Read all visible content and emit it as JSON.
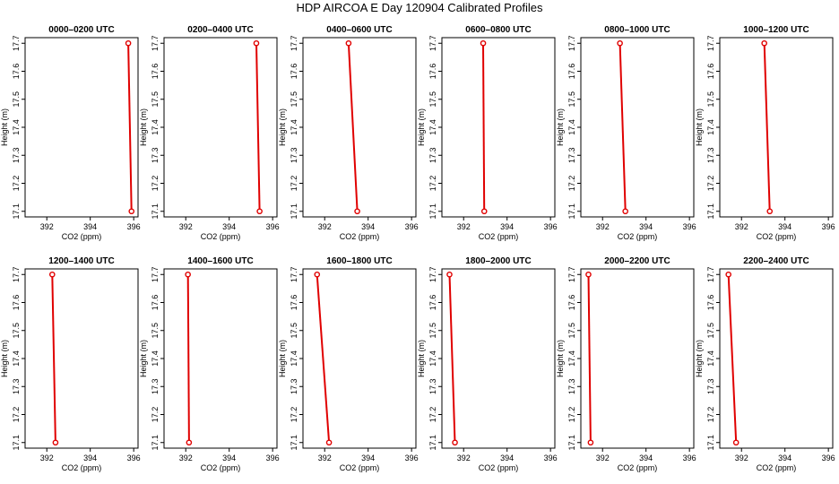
{
  "title": "HDP AIRCOA E  Day 120904  Calibrated Profiles",
  "style": {
    "line_color": "#e00000",
    "marker_color": "#e00000",
    "axis_color": "#000000"
  },
  "chart_data": [
    {
      "type": "line",
      "title": "0000–0200 UTC",
      "xlabel": "CO2 (ppm)",
      "ylabel": "Height (m)",
      "xlim": [
        391,
        396.2
      ],
      "ylim": [
        17.08,
        17.72
      ],
      "xticks": [
        "392",
        "394",
        "396"
      ],
      "yticks": [
        "17.1",
        "17.2",
        "17.3",
        "17.4",
        "17.5",
        "17.6",
        "17.7"
      ],
      "points": [
        {
          "x": 395.75,
          "y": 17.7
        },
        {
          "x": 395.9,
          "y": 17.1
        }
      ]
    },
    {
      "type": "line",
      "title": "0200–0400 UTC",
      "xlabel": "CO2 (ppm)",
      "ylabel": "Height (m)",
      "xlim": [
        391,
        396.2
      ],
      "ylim": [
        17.08,
        17.72
      ],
      "xticks": [
        "392",
        "394",
        "396"
      ],
      "yticks": [
        "17.1",
        "17.2",
        "17.3",
        "17.4",
        "17.5",
        "17.6",
        "17.7"
      ],
      "points": [
        {
          "x": 395.25,
          "y": 17.7
        },
        {
          "x": 395.4,
          "y": 17.1
        }
      ]
    },
    {
      "type": "line",
      "title": "0400–0600 UTC",
      "xlabel": "CO2 (ppm)",
      "ylabel": "Height (m)",
      "xlim": [
        391,
        396.2
      ],
      "ylim": [
        17.08,
        17.72
      ],
      "xticks": [
        "392",
        "394",
        "396"
      ],
      "yticks": [
        "17.1",
        "17.2",
        "17.3",
        "17.4",
        "17.5",
        "17.6",
        "17.7"
      ],
      "points": [
        {
          "x": 393.1,
          "y": 17.7
        },
        {
          "x": 393.5,
          "y": 17.1
        }
      ]
    },
    {
      "type": "line",
      "title": "0600–0800 UTC",
      "xlabel": "CO2 (ppm)",
      "ylabel": "Height (m)",
      "xlim": [
        391,
        396.2
      ],
      "ylim": [
        17.08,
        17.72
      ],
      "xticks": [
        "392",
        "394",
        "396"
      ],
      "yticks": [
        "17.1",
        "17.2",
        "17.3",
        "17.4",
        "17.5",
        "17.6",
        "17.7"
      ],
      "points": [
        {
          "x": 392.9,
          "y": 17.7
        },
        {
          "x": 392.95,
          "y": 17.1
        }
      ]
    },
    {
      "type": "line",
      "title": "0800–1000 UTC",
      "xlabel": "CO2 (ppm)",
      "ylabel": "Height (m)",
      "xlim": [
        391,
        396.2
      ],
      "ylim": [
        17.08,
        17.72
      ],
      "xticks": [
        "392",
        "394",
        "396"
      ],
      "yticks": [
        "17.1",
        "17.2",
        "17.3",
        "17.4",
        "17.5",
        "17.6",
        "17.7"
      ],
      "points": [
        {
          "x": 392.8,
          "y": 17.7
        },
        {
          "x": 393.05,
          "y": 17.1
        }
      ]
    },
    {
      "type": "line",
      "title": "1000–1200 UTC",
      "xlabel": "CO2 (ppm)",
      "ylabel": "Height (m)",
      "xlim": [
        391,
        396.2
      ],
      "ylim": [
        17.08,
        17.72
      ],
      "xticks": [
        "392",
        "394",
        "396"
      ],
      "yticks": [
        "17.1",
        "17.2",
        "17.3",
        "17.4",
        "17.5",
        "17.6",
        "17.7"
      ],
      "points": [
        {
          "x": 393.05,
          "y": 17.7
        },
        {
          "x": 393.3,
          "y": 17.1
        }
      ]
    },
    {
      "type": "line",
      "title": "1200–1400 UTC",
      "xlabel": "CO2 (ppm)",
      "ylabel": "Height (m)",
      "xlim": [
        391,
        396.2
      ],
      "ylim": [
        17.08,
        17.72
      ],
      "xticks": [
        "392",
        "394",
        "396"
      ],
      "yticks": [
        "17.1",
        "17.2",
        "17.3",
        "17.4",
        "17.5",
        "17.6",
        "17.7"
      ],
      "points": [
        {
          "x": 392.25,
          "y": 17.7
        },
        {
          "x": 392.4,
          "y": 17.1
        }
      ]
    },
    {
      "type": "line",
      "title": "1400–1600 UTC",
      "xlabel": "CO2 (ppm)",
      "ylabel": "Height (m)",
      "xlim": [
        391,
        396.2
      ],
      "ylim": [
        17.08,
        17.72
      ],
      "xticks": [
        "392",
        "394",
        "396"
      ],
      "yticks": [
        "17.1",
        "17.2",
        "17.3",
        "17.4",
        "17.5",
        "17.6",
        "17.7"
      ],
      "points": [
        {
          "x": 392.1,
          "y": 17.7
        },
        {
          "x": 392.15,
          "y": 17.1
        }
      ]
    },
    {
      "type": "line",
      "title": "1600–1800 UTC",
      "xlabel": "CO2 (ppm)",
      "ylabel": "Height (m)",
      "xlim": [
        391,
        396.2
      ],
      "ylim": [
        17.08,
        17.72
      ],
      "xticks": [
        "392",
        "394",
        "396"
      ],
      "yticks": [
        "17.1",
        "17.2",
        "17.3",
        "17.4",
        "17.5",
        "17.6",
        "17.7"
      ],
      "points": [
        {
          "x": 391.65,
          "y": 17.7
        },
        {
          "x": 392.2,
          "y": 17.1
        }
      ]
    },
    {
      "type": "line",
      "title": "1800–2000 UTC",
      "xlabel": "CO2 (ppm)",
      "ylabel": "Height (m)",
      "xlim": [
        391,
        396.2
      ],
      "ylim": [
        17.08,
        17.72
      ],
      "xticks": [
        "392",
        "394",
        "396"
      ],
      "yticks": [
        "17.1",
        "17.2",
        "17.3",
        "17.4",
        "17.5",
        "17.6",
        "17.7"
      ],
      "points": [
        {
          "x": 391.35,
          "y": 17.7
        },
        {
          "x": 391.6,
          "y": 17.1
        }
      ]
    },
    {
      "type": "line",
      "title": "2000–2200 UTC",
      "xlabel": "CO2 (ppm)",
      "ylabel": "Height (m)",
      "xlim": [
        391,
        396.2
      ],
      "ylim": [
        17.08,
        17.72
      ],
      "xticks": [
        "392",
        "394",
        "396"
      ],
      "yticks": [
        "17.1",
        "17.2",
        "17.3",
        "17.4",
        "17.5",
        "17.6",
        "17.7"
      ],
      "points": [
        {
          "x": 391.35,
          "y": 17.7
        },
        {
          "x": 391.45,
          "y": 17.1
        }
      ]
    },
    {
      "type": "line",
      "title": "2200–2400 UTC",
      "xlabel": "CO2 (ppm)",
      "ylabel": "Height (m)",
      "xlim": [
        391,
        396.2
      ],
      "ylim": [
        17.08,
        17.72
      ],
      "xticks": [
        "392",
        "394",
        "396"
      ],
      "yticks": [
        "17.1",
        "17.2",
        "17.3",
        "17.4",
        "17.5",
        "17.6",
        "17.7"
      ],
      "points": [
        {
          "x": 391.4,
          "y": 17.7
        },
        {
          "x": 391.75,
          "y": 17.1
        }
      ]
    }
  ]
}
